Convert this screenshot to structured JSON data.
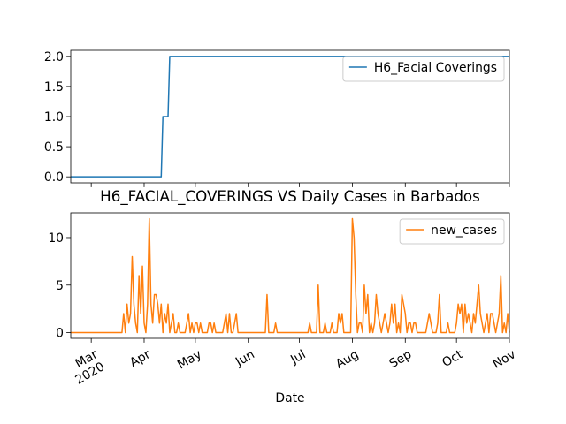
{
  "chart_data": [
    {
      "type": "line",
      "series": [
        {
          "name": "H6_Facial Coverings",
          "color": "#1f77b4",
          "values": [
            0,
            0,
            0,
            0,
            0,
            0,
            0,
            0,
            0,
            0,
            0,
            0,
            0,
            0,
            0,
            0,
            0,
            0,
            0,
            0,
            0,
            0,
            0,
            0,
            0,
            0,
            0,
            0,
            0,
            0,
            0,
            0,
            0,
            0,
            0,
            0,
            0,
            0,
            0,
            0,
            0,
            0,
            0,
            0,
            0,
            0,
            0,
            0,
            0,
            0,
            0,
            0,
            0,
            0,
            1,
            1,
            1,
            1,
            2,
            2,
            2,
            2,
            2,
            2,
            2,
            2,
            2,
            2,
            2,
            2,
            2,
            2,
            2,
            2,
            2,
            2,
            2,
            2,
            2,
            2,
            2,
            2,
            2,
            2,
            2,
            2,
            2,
            2,
            2,
            2,
            2,
            2,
            2,
            2,
            2,
            2,
            2,
            2,
            2,
            2,
            2,
            2,
            2,
            2,
            2,
            2,
            2,
            2,
            2,
            2,
            2,
            2,
            2,
            2,
            2,
            2,
            2,
            2,
            2,
            2,
            2,
            2,
            2,
            2,
            2,
            2,
            2,
            2,
            2,
            2,
            2,
            2,
            2,
            2,
            2,
            2,
            2,
            2,
            2,
            2,
            2,
            2,
            2,
            2,
            2,
            2,
            2,
            2,
            2,
            2,
            2,
            2,
            2,
            2,
            2,
            2,
            2,
            2,
            2,
            2,
            2,
            2,
            2,
            2,
            2,
            2,
            2,
            2,
            2,
            2,
            2,
            2,
            2,
            2,
            2,
            2,
            2,
            2,
            2,
            2,
            2,
            2,
            2,
            2,
            2,
            2,
            2,
            2,
            2,
            2,
            2,
            2,
            2,
            2,
            2,
            2,
            2,
            2,
            2,
            2,
            2,
            2,
            2,
            2,
            2,
            2,
            2,
            2,
            2,
            2,
            2,
            2,
            2,
            2,
            2,
            2,
            2,
            2,
            2,
            2,
            2,
            2,
            2,
            2,
            2,
            2,
            2,
            2,
            2,
            2,
            2,
            2,
            2,
            2,
            2,
            2,
            2,
            2,
            2,
            2,
            2,
            2,
            2,
            2,
            2,
            2,
            2,
            2,
            2,
            2,
            2,
            2,
            2,
            2,
            2,
            2,
            2,
            2
          ]
        }
      ],
      "ylim": [
        -0.1,
        2.1
      ],
      "yticks": [
        {
          "value": 0,
          "label": "0.0"
        },
        {
          "value": 0.5,
          "label": "0.5"
        },
        {
          "value": 1,
          "label": "1.0"
        },
        {
          "value": 1.5,
          "label": "1.5"
        },
        {
          "value": 2,
          "label": "2.0"
        }
      ],
      "legend": "upper right"
    },
    {
      "type": "line",
      "title": "H6_FACIAL_COVERINGS VS Daily Cases in Barbados",
      "xlabel": "Date",
      "categories": [
        null,
        null,
        null,
        null,
        null,
        null,
        null,
        null,
        null,
        null,
        null,
        null,
        "Mar\n2020",
        null,
        null,
        null,
        null,
        null,
        null,
        null,
        null,
        null,
        null,
        null,
        null,
        null,
        null,
        null,
        null,
        null,
        null,
        null,
        null,
        null,
        null,
        null,
        null,
        null,
        null,
        null,
        null,
        null,
        null,
        "Apr",
        null,
        null,
        null,
        null,
        null,
        null,
        null,
        null,
        null,
        null,
        null,
        null,
        null,
        null,
        null,
        null,
        null,
        null,
        null,
        null,
        null,
        null,
        null,
        null,
        null,
        null,
        null,
        null,
        null,
        "May",
        null,
        null,
        null,
        null,
        null,
        null,
        null,
        null,
        null,
        null,
        null,
        null,
        null,
        null,
        null,
        null,
        null,
        null,
        null,
        null,
        null,
        null,
        null,
        null,
        null,
        null,
        null,
        null,
        null,
        null,
        "Jun",
        null,
        null,
        null,
        null,
        null,
        null,
        null,
        null,
        null,
        null,
        null,
        null,
        null,
        null,
        null,
        null,
        null,
        null,
        null,
        null,
        null,
        null,
        null,
        null,
        null,
        null,
        null,
        null,
        null,
        "Jul",
        null,
        null,
        null,
        null,
        null,
        null,
        null,
        null,
        null,
        null,
        null,
        null,
        null,
        null,
        null,
        null,
        null,
        null,
        null,
        null,
        null,
        null,
        null,
        null,
        null,
        null,
        null,
        null,
        null,
        null,
        "Aug",
        null,
        null,
        null,
        null,
        null,
        null,
        null,
        null,
        null,
        null,
        null,
        null,
        null,
        null,
        null,
        null,
        null,
        null,
        null,
        null,
        null,
        null,
        null,
        null,
        null,
        null,
        null,
        null,
        null,
        null,
        "Sep",
        null,
        null,
        null,
        null,
        null,
        null,
        null,
        null,
        null,
        null,
        null,
        null,
        null,
        null,
        null,
        null,
        null,
        null,
        null,
        null,
        null,
        null,
        null,
        null,
        null,
        null,
        null,
        null,
        null,
        "Oct",
        null,
        null,
        null,
        null,
        null,
        null,
        null,
        null,
        null,
        null,
        null,
        null,
        null,
        null,
        null,
        null,
        null,
        null,
        null,
        null,
        null,
        null,
        null,
        null,
        null,
        null,
        null,
        null,
        null,
        null,
        "Nov"
      ],
      "series": [
        {
          "name": "new_cases",
          "color": "#ff7f0e",
          "values": [
            0,
            0,
            0,
            0,
            0,
            0,
            0,
            0,
            0,
            0,
            0,
            0,
            0,
            0,
            0,
            0,
            0,
            0,
            0,
            0,
            0,
            0,
            0,
            0,
            0,
            0,
            0,
            0,
            0,
            0,
            0,
            2,
            0,
            3,
            1,
            2,
            8,
            3,
            1,
            0,
            6,
            2,
            7,
            1,
            0,
            3,
            12,
            3,
            1,
            4,
            4,
            3,
            1,
            3,
            0,
            2,
            1,
            3,
            0,
            1,
            2,
            0,
            0,
            1,
            0,
            0,
            0,
            0,
            1,
            2,
            0,
            1,
            0,
            1,
            1,
            0,
            1,
            0,
            0,
            0,
            0,
            1,
            1,
            0,
            1,
            0,
            0,
            0,
            0,
            0,
            1,
            2,
            0,
            2,
            0,
            0,
            1,
            2,
            0,
            0,
            0,
            0,
            0,
            0,
            0,
            0,
            0,
            0,
            0,
            0,
            0,
            0,
            0,
            0,
            0,
            4,
            0,
            0,
            0,
            0,
            1,
            0,
            0,
            0,
            0,
            0,
            0,
            0,
            0,
            0,
            0,
            0,
            0,
            0,
            0,
            0,
            0,
            0,
            0,
            0,
            1,
            0,
            0,
            0,
            0,
            5,
            0,
            0,
            0,
            1,
            0,
            0,
            0,
            1,
            0,
            0,
            0,
            2,
            1,
            2,
            0,
            0,
            0,
            0,
            0,
            12,
            10,
            4,
            0,
            1,
            1,
            0,
            5,
            2,
            4,
            0,
            1,
            0,
            1,
            4,
            2,
            1,
            0,
            1,
            2,
            1,
            0,
            1,
            3,
            1,
            3,
            0,
            1,
            0,
            4,
            3,
            2,
            0,
            1,
            1,
            0,
            1,
            1,
            0,
            0,
            0,
            0,
            0,
            0,
            1,
            2,
            1,
            0,
            0,
            0,
            1,
            4,
            0,
            0,
            0,
            0,
            1,
            0,
            0,
            0,
            0,
            1,
            3,
            2,
            3,
            0,
            3,
            1,
            2,
            1,
            0,
            2,
            1,
            3,
            5,
            2,
            1,
            0,
            1,
            2,
            0,
            2,
            2,
            1,
            0,
            1,
            2,
            6,
            0,
            1,
            0,
            2,
            0
          ]
        }
      ],
      "ylim": [
        -0.6,
        12.6
      ],
      "yticks": [
        0,
        5,
        10
      ],
      "legend": "upper right"
    }
  ]
}
